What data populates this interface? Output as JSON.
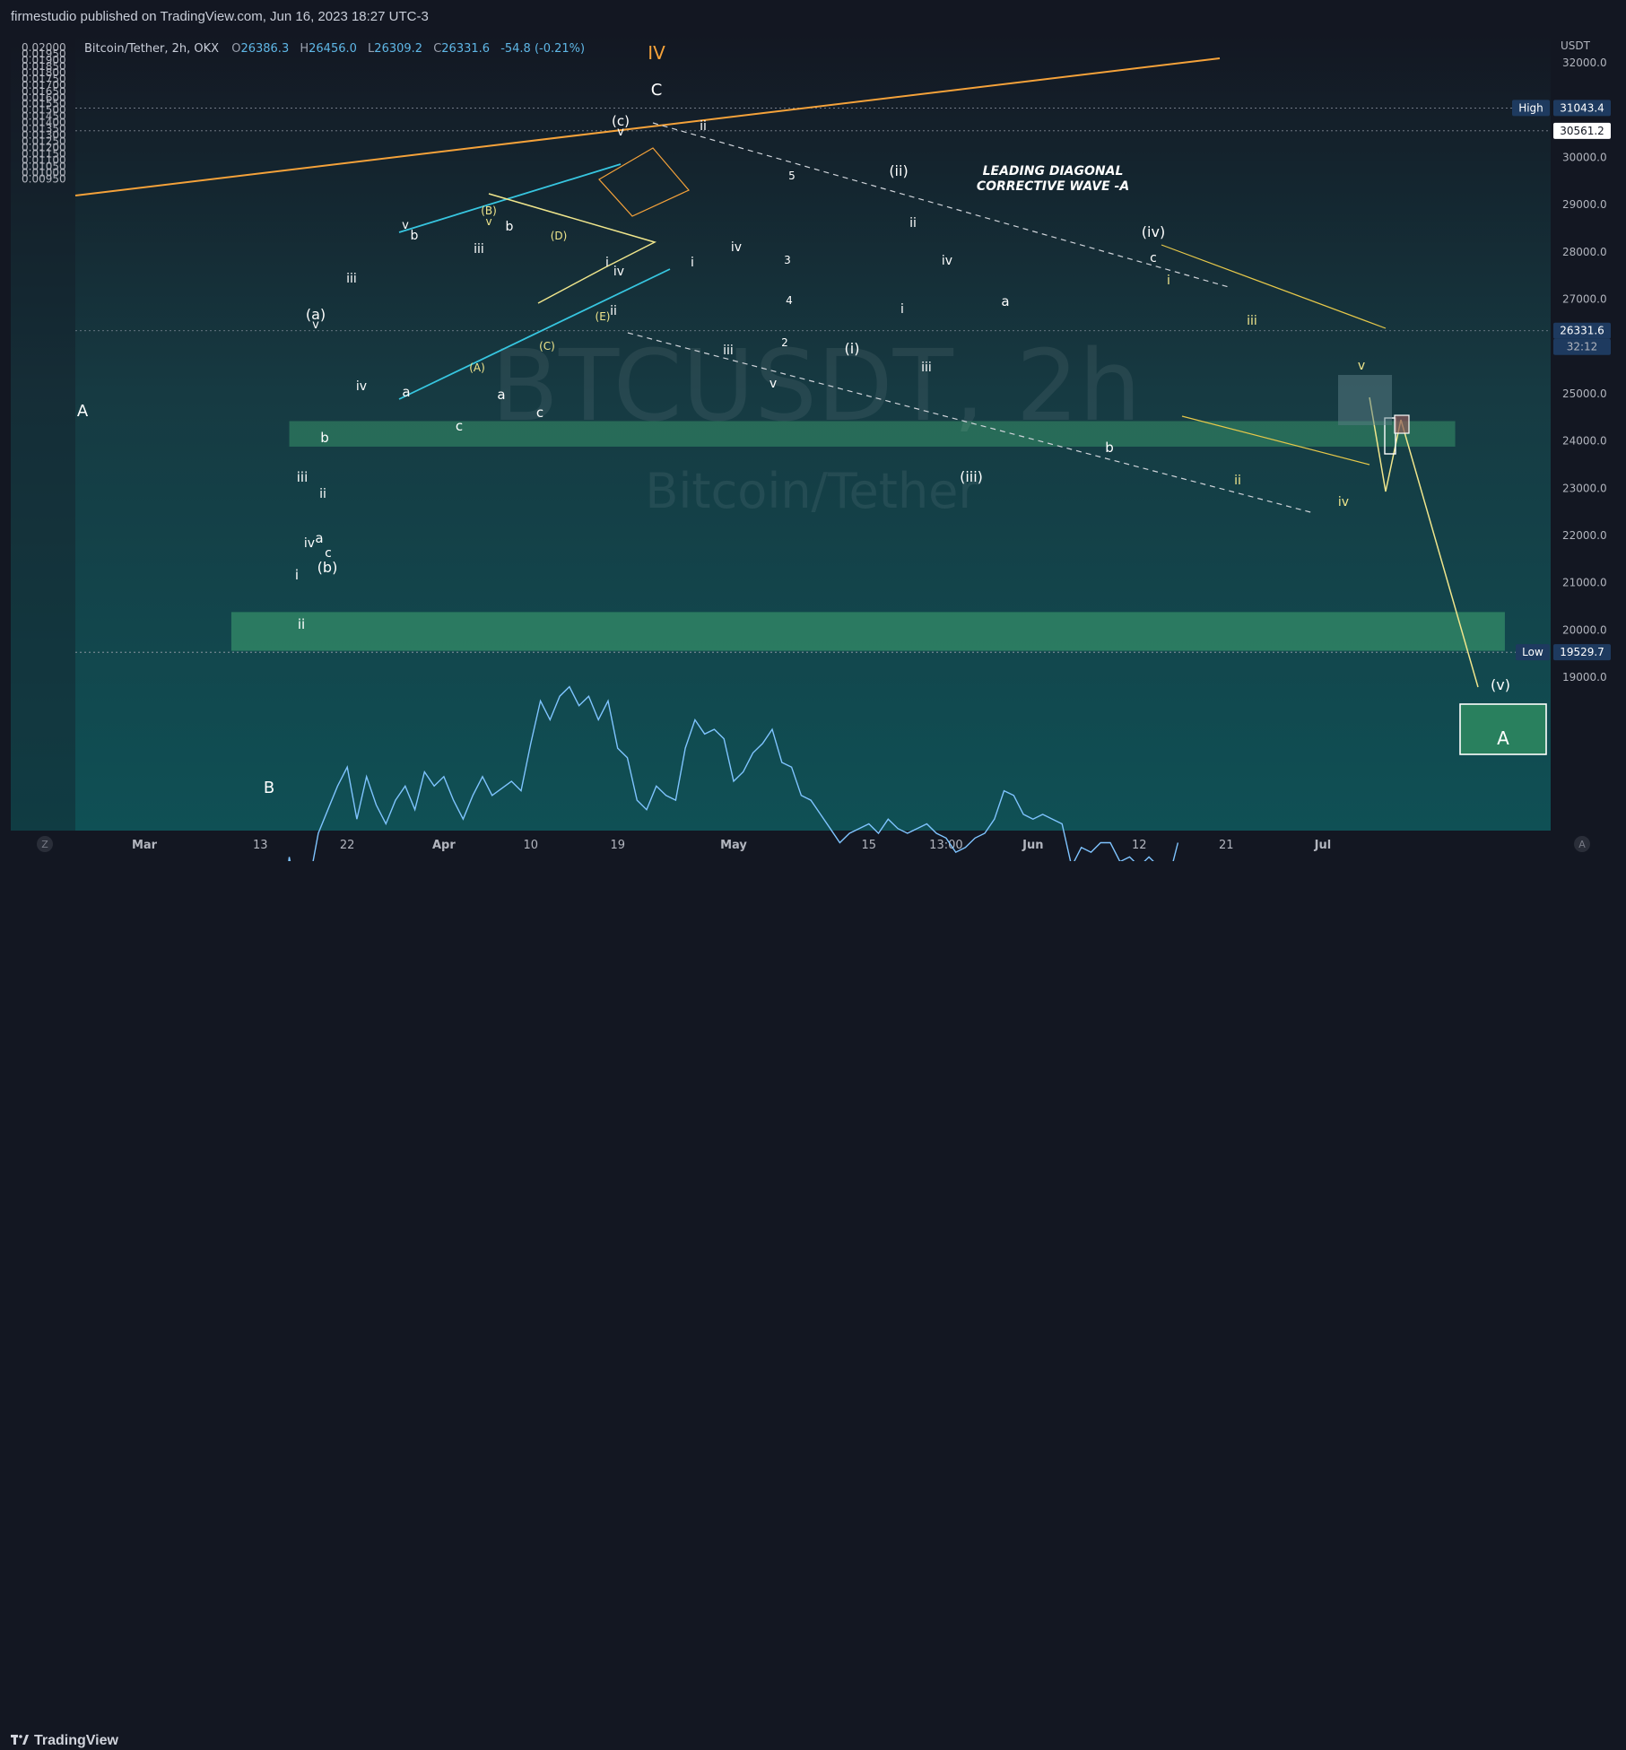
{
  "header": {
    "published": "firmestudio published on TradingView.com, Jun 16, 2023 18:27 UTC-3"
  },
  "footer": {
    "brand": "TradingView"
  },
  "legend": {
    "symbol": "Bitcoin/Tether, 2h, OKX",
    "o_label": "O",
    "o_value": "26386.3",
    "h_label": "H",
    "h_value": "26456.0",
    "l_label": "L",
    "l_value": "26309.2",
    "c_label": "C",
    "c_value": "26331.6",
    "change": "-54.8 (-0.21%)"
  },
  "watermark": {
    "ticker": "BTCUSDT, 2h",
    "name": "Bitcoin/Tether"
  },
  "colors": {
    "bg_top": "#131722",
    "bg_mid": "#163a42",
    "bg_bottom": "#0f5055",
    "price_line": "#7fc4ff",
    "orange": "#f5a23a",
    "yellow": "#f0e68c",
    "cyan": "#37c6e0",
    "zone_green": "#3fa572",
    "white": "#ffffff"
  },
  "chart_data": {
    "type": "line",
    "title": "Bitcoin/Tether, 2h, OKX",
    "right_axis_unit": "USDT",
    "right_ticks": [
      "32000.0",
      "31000.0",
      "30000.0",
      "29000.0",
      "28000.0",
      "27000.0",
      "26000.0",
      "25000.0",
      "24000.0",
      "23000.0",
      "22000.0",
      "21000.0",
      "20000.0",
      "19000.0"
    ],
    "left_ticks": [
      "0.02000",
      "0.01950",
      "0.01900",
      "0.01850",
      "0.01800",
      "0.01750",
      "0.01700",
      "0.01650",
      "0.01600",
      "0.01550",
      "0.01500",
      "0.01450",
      "0.01400",
      "0.01350",
      "0.01300",
      "0.01250",
      "0.01200",
      "0.01150",
      "0.01100",
      "0.01050",
      "0.01000",
      "0.00950"
    ],
    "x_ticks": [
      {
        "label": "Mar",
        "x": "2023-03-01"
      },
      {
        "label": "13",
        "x": "2023-03-13"
      },
      {
        "label": "22",
        "x": "2023-03-22"
      },
      {
        "label": "Apr",
        "x": "2023-04-01"
      },
      {
        "label": "10",
        "x": "2023-04-10"
      },
      {
        "label": "19",
        "x": "2023-04-19"
      },
      {
        "label": "May",
        "x": "2023-05-01"
      },
      {
        "label": "15",
        "x": "2023-05-15"
      },
      {
        "label": "13:00",
        "x": "2023-05-23"
      },
      {
        "label": "Jun",
        "x": "2023-06-01"
      },
      {
        "label": "12",
        "x": "2023-06-12"
      },
      {
        "label": "21",
        "x": "2023-06-21"
      },
      {
        "label": "Jul",
        "x": "2023-07-01"
      }
    ],
    "price_labels": {
      "high_label": "High",
      "high": "31043.4",
      "level": "30561.2",
      "last": "26331.6",
      "countdown": "32:12",
      "low_label": "Low",
      "low": "19529.7"
    },
    "series": [
      {
        "values": [
          [
            "2023-02-20",
            14600
          ],
          [
            "2023-02-21",
            14100
          ],
          [
            "2023-02-22",
            13800
          ],
          [
            "2023-02-24",
            13250
          ],
          [
            "2023-02-25",
            13150
          ],
          [
            "2023-02-27",
            13450
          ],
          [
            "2023-03-01",
            13500
          ],
          [
            "2023-03-02",
            13250
          ],
          [
            "2023-03-03",
            12750
          ],
          [
            "2023-03-04",
            12700
          ],
          [
            "2023-03-06",
            12600
          ],
          [
            "2023-03-07",
            12450
          ],
          [
            "2023-03-08",
            12150
          ],
          [
            "2023-03-09",
            11400
          ],
          [
            "2023-03-10",
            10600
          ],
          [
            "2023-03-11",
            10650
          ],
          [
            "2023-03-12",
            10900
          ],
          [
            "2023-03-13",
            11300
          ],
          [
            "2023-03-14",
            12600
          ],
          [
            "2023-03-15",
            13500
          ],
          [
            "2023-03-16",
            15200
          ],
          [
            "2023-03-17",
            14200
          ],
          [
            "2023-03-18",
            14600
          ],
          [
            "2023-03-19",
            15700
          ],
          [
            "2023-03-20",
            16200
          ],
          [
            "2023-03-21",
            16700
          ],
          [
            "2023-03-22",
            17100
          ],
          [
            "2023-03-23",
            16000
          ],
          [
            "2023-03-24",
            16900
          ],
          [
            "2023-03-25",
            16300
          ],
          [
            "2023-03-26",
            15900
          ],
          [
            "2023-03-27",
            16400
          ],
          [
            "2023-03-28",
            16700
          ],
          [
            "2023-03-29",
            16200
          ],
          [
            "2023-03-30",
            17000
          ],
          [
            "2023-03-31",
            16700
          ],
          [
            "2023-04-01",
            16900
          ],
          [
            "2023-04-02",
            16400
          ],
          [
            "2023-04-03",
            16000
          ],
          [
            "2023-04-04",
            16500
          ],
          [
            "2023-04-05",
            16900
          ],
          [
            "2023-04-06",
            16500
          ],
          [
            "2023-04-07",
            16650
          ],
          [
            "2023-04-08",
            16800
          ],
          [
            "2023-04-09",
            16600
          ],
          [
            "2023-04-10",
            17600
          ],
          [
            "2023-04-11",
            18500
          ],
          [
            "2023-04-12",
            18100
          ],
          [
            "2023-04-13",
            18600
          ],
          [
            "2023-04-14",
            18800
          ],
          [
            "2023-04-15",
            18400
          ],
          [
            "2023-04-16",
            18600
          ],
          [
            "2023-04-17",
            18100
          ],
          [
            "2023-04-18",
            18500
          ],
          [
            "2023-04-19",
            17500
          ],
          [
            "2023-04-20",
            17300
          ],
          [
            "2023-04-21",
            16400
          ],
          [
            "2023-04-22",
            16200
          ],
          [
            "2023-04-23",
            16700
          ],
          [
            "2023-04-24",
            16500
          ],
          [
            "2023-04-25",
            16400
          ],
          [
            "2023-04-26",
            17500
          ],
          [
            "2023-04-27",
            18100
          ],
          [
            "2023-04-28",
            17800
          ],
          [
            "2023-04-29",
            17900
          ],
          [
            "2023-04-30",
            17700
          ],
          [
            "2023-05-01",
            16800
          ],
          [
            "2023-05-02",
            17000
          ],
          [
            "2023-05-03",
            17400
          ],
          [
            "2023-05-04",
            17600
          ],
          [
            "2023-05-05",
            17900
          ],
          [
            "2023-05-06",
            17200
          ],
          [
            "2023-05-07",
            17100
          ],
          [
            "2023-05-08",
            16500
          ],
          [
            "2023-05-09",
            16400
          ],
          [
            "2023-05-10",
            16100
          ],
          [
            "2023-05-11",
            15800
          ],
          [
            "2023-05-12",
            15500
          ],
          [
            "2023-05-13",
            15700
          ],
          [
            "2023-05-14",
            15800
          ],
          [
            "2023-05-15",
            15900
          ],
          [
            "2023-05-16",
            15700
          ],
          [
            "2023-05-17",
            16000
          ],
          [
            "2023-05-18",
            15800
          ],
          [
            "2023-05-19",
            15700
          ],
          [
            "2023-05-20",
            15800
          ],
          [
            "2023-05-21",
            15900
          ],
          [
            "2023-05-22",
            15700
          ],
          [
            "2023-05-23",
            15600
          ],
          [
            "2023-05-24",
            15300
          ],
          [
            "2023-05-25",
            15400
          ],
          [
            "2023-05-26",
            15600
          ],
          [
            "2023-05-27",
            15700
          ],
          [
            "2023-05-28",
            16000
          ],
          [
            "2023-05-29",
            16600
          ],
          [
            "2023-05-30",
            16500
          ],
          [
            "2023-05-31",
            16100
          ],
          [
            "2023-06-01",
            16000
          ],
          [
            "2023-06-02",
            16100
          ],
          [
            "2023-06-03",
            16000
          ],
          [
            "2023-06-04",
            15900
          ],
          [
            "2023-06-05",
            15000
          ],
          [
            "2023-06-06",
            15400
          ],
          [
            "2023-06-07",
            15300
          ],
          [
            "2023-06-08",
            15500
          ],
          [
            "2023-06-09",
            15500
          ],
          [
            "2023-06-10",
            15100
          ],
          [
            "2023-06-11",
            15200
          ],
          [
            "2023-06-12",
            15000
          ],
          [
            "2023-06-13",
            15200
          ],
          [
            "2023-06-14",
            15000
          ],
          [
            "2023-06-15",
            14700
          ],
          [
            "2023-06-16",
            15500
          ]
        ]
      }
    ],
    "annotations": [
      "IV",
      "C",
      "(c)",
      "v",
      "ii",
      "A",
      "B",
      "(a)",
      "v",
      "(b)",
      "LEADING DIAGONAL",
      "CORRECTIVE WAVE -A",
      "(ii)",
      "(iv)",
      "c",
      "(i)",
      "(iii)",
      "(v)",
      "A",
      "i",
      "ii",
      "iii",
      "iv",
      "v"
    ]
  }
}
